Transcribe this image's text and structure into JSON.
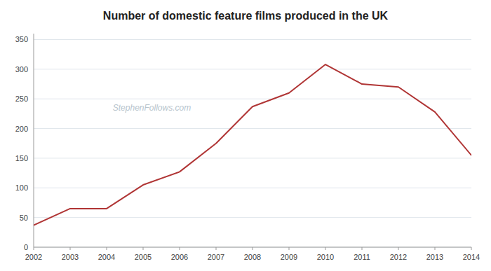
{
  "chart_data": {
    "type": "line",
    "title": "Number of domestic feature films produced in the UK",
    "x": [
      2002,
      2003,
      2004,
      2005,
      2006,
      2007,
      2008,
      2009,
      2010,
      2011,
      2012,
      2013,
      2014
    ],
    "values": [
      37,
      65,
      65,
      105,
      127,
      175,
      237,
      260,
      308,
      275,
      270,
      228,
      155
    ],
    "color": "#b03535",
    "xlim": [
      2002,
      2014
    ],
    "xticks": [
      2002,
      2003,
      2004,
      2005,
      2006,
      2007,
      2008,
      2009,
      2010,
      2011,
      2012,
      2013,
      2014
    ],
    "ylim": [
      0,
      360
    ],
    "yticks": [
      0,
      50,
      100,
      150,
      200,
      250,
      300,
      350
    ],
    "grid": true,
    "annotations": [
      "StephenFollows.com"
    ]
  }
}
